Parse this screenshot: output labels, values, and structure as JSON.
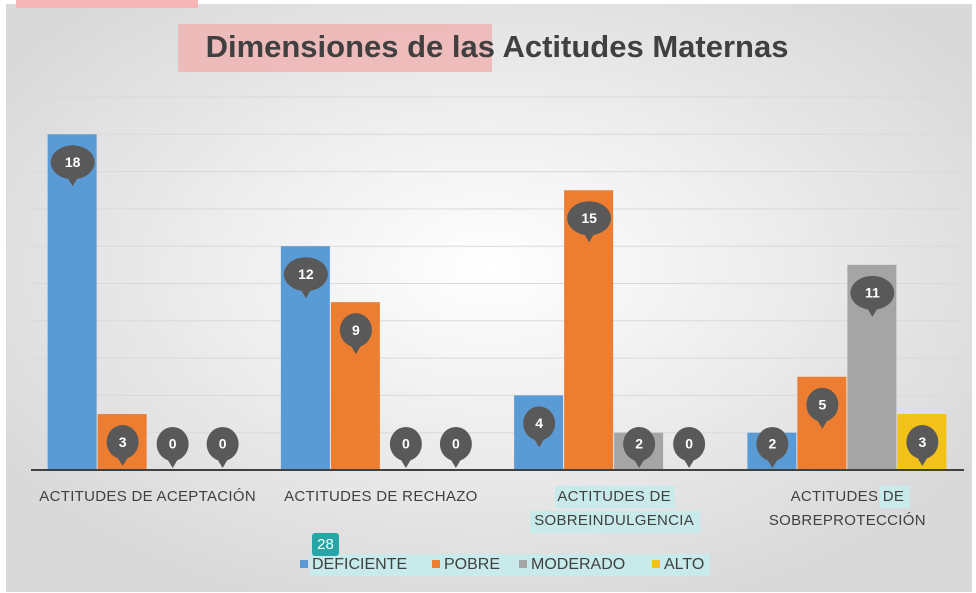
{
  "chart_data": {
    "type": "bar",
    "title": "Dimensiones de las Actitudes Maternas",
    "categories": [
      "ACTITUDES DE ACEPTACIÓN",
      "ACTITUDES DE RECHAZO",
      "ACTITUDES DE SOBREINDULGENCIA",
      "ACTITUDES DE SOBREPROTECCIÓN"
    ],
    "series": [
      {
        "name": "DEFICIENTE",
        "color": "#5b9bd5",
        "values": [
          18,
          12,
          4,
          2
        ]
      },
      {
        "name": "POBRE",
        "color": "#ed7d31",
        "values": [
          3,
          9,
          15,
          5
        ]
      },
      {
        "name": "MODERADO",
        "color": "#a5a5a5",
        "values": [
          0,
          0,
          2,
          11
        ]
      },
      {
        "name": "ALTO",
        "color": "#f2c21a",
        "values": [
          0,
          0,
          0,
          3
        ]
      }
    ],
    "ylim": [
      0,
      20
    ],
    "yticks": [
      0,
      2,
      4,
      6,
      8,
      10,
      12,
      14,
      16,
      18,
      20
    ],
    "grid": true,
    "legend": "bottom",
    "annotation": "28"
  }
}
